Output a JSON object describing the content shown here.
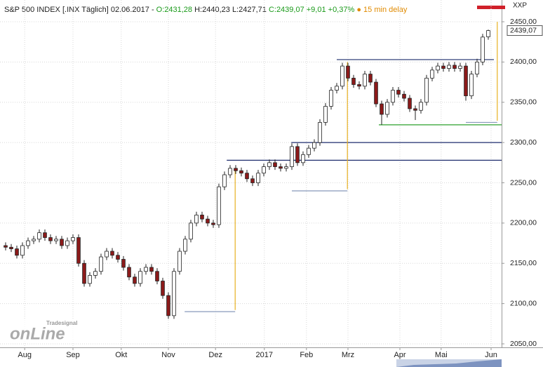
{
  "chart_data": {
    "type": "candlestick",
    "header": {
      "name": "S&P 500 INDEX [.INX Täglich] 02.06.2017 -",
      "ohlc_open": "O:2431,28",
      "ohlc_high": "H:2440,23",
      "ohlc_low": "L:2427,71",
      "ohlc_close": "C:2439,07 +9,01 +0,37%",
      "delay": "15 min delay"
    },
    "symbol_tag": "XXP",
    "logo_small": "Tradesignal",
    "logo_big": "onLine",
    "up_color": "#ffffff",
    "down_color": "#8b1a1a",
    "grid": true,
    "ylim": [
      2050,
      2450
    ],
    "yticks": [
      {
        "value": 2050,
        "label": "2050,00"
      },
      {
        "value": 2100,
        "label": "2100,00"
      },
      {
        "value": 2150,
        "label": "2150,00"
      },
      {
        "value": 2200,
        "label": "2200,00"
      },
      {
        "value": 2250,
        "label": "2250,00"
      },
      {
        "value": 2300,
        "label": "2300,00"
      },
      {
        "value": 2350,
        "label": "2350,00"
      },
      {
        "value": 2400,
        "label": "2400,00"
      },
      {
        "value": 2450,
        "label": "2450,00"
      }
    ],
    "xlim": [
      -1,
      88.375
    ],
    "xticks": [
      {
        "value": 3.4,
        "label": "Aug"
      },
      {
        "value": 12,
        "label": "Sep"
      },
      {
        "value": 20.6,
        "label": "Okt"
      },
      {
        "value": 29,
        "label": "Nov"
      },
      {
        "value": 37.4,
        "label": "Dez"
      },
      {
        "value": 46.1,
        "label": "2017"
      },
      {
        "value": 53.6,
        "label": "Feb"
      },
      {
        "value": 61,
        "label": "Mrz"
      },
      {
        "value": 70.25,
        "label": "Apr"
      },
      {
        "value": 77.6,
        "label": "Mai"
      },
      {
        "value": 86.5,
        "label": "Jun"
      }
    ],
    "last_price": {
      "value": 2439.07,
      "label": "2439,07"
    },
    "candles": [
      [
        2172,
        2176,
        2166,
        2170
      ],
      [
        2170,
        2174,
        2164,
        2168
      ],
      [
        2168,
        2172,
        2156,
        2160
      ],
      [
        2160,
        2176,
        2156,
        2172
      ],
      [
        2172,
        2182,
        2168,
        2178
      ],
      [
        2178,
        2184,
        2174,
        2180
      ],
      [
        2180,
        2192,
        2176,
        2188
      ],
      [
        2188,
        2192,
        2178,
        2182
      ],
      [
        2182,
        2186,
        2174,
        2178
      ],
      [
        2178,
        2184,
        2174,
        2180
      ],
      [
        2180,
        2184,
        2168,
        2172
      ],
      [
        2172,
        2182,
        2168,
        2178
      ],
      [
        2178,
        2186,
        2174,
        2182
      ],
      [
        2182,
        2186,
        2146,
        2150
      ],
      [
        2150,
        2154,
        2121,
        2125
      ],
      [
        2125,
        2139,
        2121,
        2135
      ],
      [
        2135,
        2144,
        2131,
        2140
      ],
      [
        2140,
        2162,
        2136,
        2158
      ],
      [
        2158,
        2169,
        2154,
        2165
      ],
      [
        2165,
        2169,
        2156,
        2160
      ],
      [
        2160,
        2164,
        2151,
        2155
      ],
      [
        2155,
        2159,
        2141,
        2145
      ],
      [
        2145,
        2149,
        2129,
        2133
      ],
      [
        2133,
        2137,
        2121,
        2125
      ],
      [
        2125,
        2144,
        2121,
        2140
      ],
      [
        2140,
        2149,
        2136,
        2145
      ],
      [
        2145,
        2149,
        2136,
        2140
      ],
      [
        2140,
        2144,
        2124,
        2128
      ],
      [
        2128,
        2132,
        2106,
        2110
      ],
      [
        2110,
        2114,
        2081,
        2085
      ],
      [
        2085,
        2144,
        2081,
        2140
      ],
      [
        2140,
        2169,
        2136,
        2165
      ],
      [
        2165,
        2184,
        2161,
        2180
      ],
      [
        2180,
        2204,
        2176,
        2200
      ],
      [
        2200,
        2214,
        2196,
        2210
      ],
      [
        2210,
        2214,
        2201,
        2205
      ],
      [
        2205,
        2209,
        2196,
        2200
      ],
      [
        2200,
        2204,
        2194,
        2198
      ],
      [
        2198,
        2249,
        2194,
        2245
      ],
      [
        2245,
        2264,
        2241,
        2260
      ],
      [
        2260,
        2272,
        2256,
        2268
      ],
      [
        2268,
        2272,
        2261,
        2265
      ],
      [
        2265,
        2269,
        2258,
        2262
      ],
      [
        2262,
        2266,
        2251,
        2255
      ],
      [
        2255,
        2259,
        2246,
        2250
      ],
      [
        2250,
        2266,
        2246,
        2262
      ],
      [
        2262,
        2274,
        2258,
        2270
      ],
      [
        2270,
        2279,
        2266,
        2275
      ],
      [
        2275,
        2279,
        2266,
        2270
      ],
      [
        2270,
        2274,
        2264,
        2268
      ],
      [
        2268,
        2274,
        2264,
        2270
      ],
      [
        2270,
        2299,
        2266,
        2295
      ],
      [
        2295,
        2299,
        2271,
        2275
      ],
      [
        2275,
        2289,
        2271,
        2285
      ],
      [
        2285,
        2297,
        2281,
        2293
      ],
      [
        2293,
        2304,
        2289,
        2300
      ],
      [
        2300,
        2329,
        2296,
        2325
      ],
      [
        2325,
        2349,
        2321,
        2345
      ],
      [
        2345,
        2369,
        2341,
        2365
      ],
      [
        2365,
        2374,
        2361,
        2370
      ],
      [
        2370,
        2399,
        2366,
        2395
      ],
      [
        2395,
        2399,
        2376,
        2380
      ],
      [
        2380,
        2384,
        2368,
        2372
      ],
      [
        2372,
        2376,
        2366,
        2370
      ],
      [
        2370,
        2389,
        2366,
        2385
      ],
      [
        2385,
        2389,
        2371,
        2375
      ],
      [
        2375,
        2379,
        2344,
        2348
      ],
      [
        2348,
        2352,
        2322,
        2335
      ],
      [
        2335,
        2354,
        2331,
        2350
      ],
      [
        2350,
        2369,
        2346,
        2365
      ],
      [
        2365,
        2369,
        2356,
        2360
      ],
      [
        2360,
        2364,
        2351,
        2355
      ],
      [
        2355,
        2359,
        2338,
        2342
      ],
      [
        2342,
        2346,
        2328,
        2340
      ],
      [
        2340,
        2354,
        2336,
        2350
      ],
      [
        2350,
        2384,
        2346,
        2380
      ],
      [
        2380,
        2394,
        2376,
        2390
      ],
      [
        2390,
        2399,
        2386,
        2395
      ],
      [
        2395,
        2399,
        2388,
        2392
      ],
      [
        2392,
        2400,
        2388,
        2396
      ],
      [
        2396,
        2400,
        2388,
        2392
      ],
      [
        2392,
        2399,
        2388,
        2395
      ],
      [
        2395,
        2399,
        2352,
        2358
      ],
      [
        2358,
        2389,
        2354,
        2385
      ],
      [
        2385,
        2404,
        2381,
        2400
      ],
      [
        2400,
        2435,
        2396,
        2431
      ],
      [
        2431.28,
        2440.23,
        2427.71,
        2439.07
      ]
    ],
    "hlines": [
      {
        "y": 2403,
        "x": [
          59,
          87
        ],
        "color": "#1f2d6e"
      },
      {
        "y": 2300,
        "x": [
          50.9,
          88.375
        ],
        "color": "#1f2d6e"
      },
      {
        "y": 2278,
        "x": [
          39.4,
          88.375
        ],
        "color": "#1f2d6e"
      },
      {
        "y": 2322,
        "x": [
          66.5,
          88.375
        ],
        "color": "#2ca02c"
      },
      {
        "y": 2325,
        "x": [
          82,
          87.6
        ],
        "color": "#8899bb"
      },
      {
        "y": 2240,
        "x": [
          51,
          60.9
        ],
        "color": "#8899bb"
      },
      {
        "y": 2090,
        "x": [
          31.9,
          40.9
        ],
        "color": "#8899bb"
      }
    ],
    "vlines": [
      {
        "x": 40.9,
        "y": [
          2092,
          2265
        ],
        "color": "#e8b020"
      },
      {
        "x": 60.9,
        "y": [
          2242,
          2400
        ],
        "color": "#e8b020"
      },
      {
        "x": 87.6,
        "y": [
          2327,
          2450
        ],
        "color": "#e8b020"
      }
    ]
  }
}
